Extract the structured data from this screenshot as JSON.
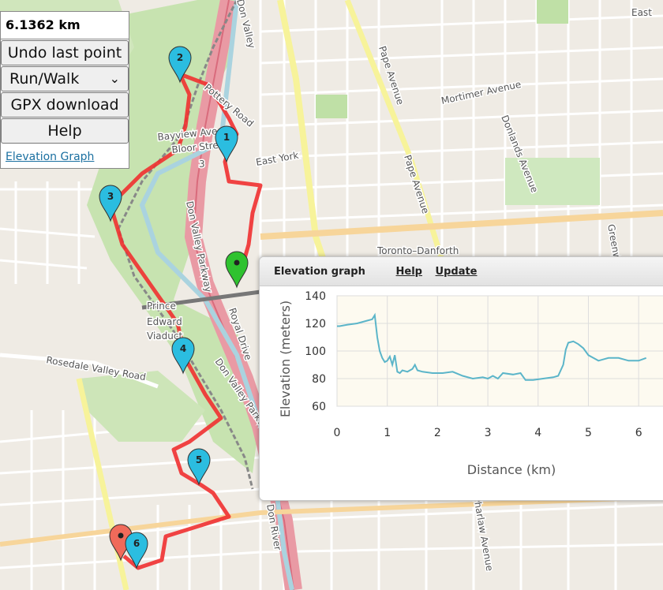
{
  "panel": {
    "distance": "6.1362 km",
    "undo_label": "Undo last point",
    "mode_label": "Run/Walk",
    "gpx_label": "GPX download",
    "help_label": "Help",
    "elevation_link": "Elevation Graph"
  },
  "map": {
    "labels": [
      {
        "text": "East"
      },
      {
        "text": "Pape Avenue"
      },
      {
        "text": "Pape Avenue"
      },
      {
        "text": "Mortimer Avenue"
      },
      {
        "text": "Donlands Avenue"
      },
      {
        "text": "East York"
      },
      {
        "text": "Toronto–Danforth"
      },
      {
        "text": "Bayview Ave"
      },
      {
        "text": "Bloor Street"
      },
      {
        "text": "3"
      },
      {
        "text": "Pottery Road"
      },
      {
        "text": "Don Valley Parkway"
      },
      {
        "text": "Don Valley Parkway"
      },
      {
        "text": "Royal Drive"
      },
      {
        "text": "Prince"
      },
      {
        "text": "Edward"
      },
      {
        "text": "Viaduct"
      },
      {
        "text": "Rosedale Valley Road"
      },
      {
        "text": "Don Valley"
      },
      {
        "text": "Don River"
      },
      {
        "text": "Greenwood"
      },
      {
        "text": "Pharlaw Avenue"
      }
    ],
    "markers": [
      {
        "label": "1",
        "color": "#2bbde0"
      },
      {
        "label": "2",
        "color": "#2bbde0"
      },
      {
        "label": "3",
        "color": "#2bbde0"
      },
      {
        "label": "4",
        "color": "#2bbde0"
      },
      {
        "label": "5",
        "color": "#2bbde0"
      },
      {
        "label": "6",
        "color": "#2bbde0"
      },
      {
        "label": "",
        "color": "#2fc22f"
      },
      {
        "label": "",
        "color": "#f06a5a"
      }
    ],
    "route_color": "#f03030"
  },
  "elevation": {
    "title": "Elevation graph",
    "help_label": "Help",
    "update_label": "Update"
  },
  "chart_data": {
    "type": "line",
    "xlabel": "Distance (km)",
    "ylabel": "Elevation (meters)",
    "xlim": [
      0,
      6.5
    ],
    "ylim": [
      60,
      140
    ],
    "xticks": [
      0,
      1,
      2,
      3,
      4,
      5,
      6
    ],
    "yticks": [
      60,
      80,
      100,
      120,
      140
    ],
    "grid": true,
    "line_color": "#5bb5c9",
    "series": [
      {
        "x": [
          0,
          0.05,
          0.2,
          0.4,
          0.6,
          0.7,
          0.75,
          0.8,
          0.85,
          0.9,
          0.95,
          1.0,
          1.05,
          1.1,
          1.15,
          1.2,
          1.25,
          1.3,
          1.4,
          1.5,
          1.55,
          1.6,
          1.7,
          1.9,
          2.1,
          2.3,
          2.5,
          2.7,
          2.9,
          3.0,
          3.1,
          3.2,
          3.3,
          3.5,
          3.65,
          3.75,
          3.9,
          4.1,
          4.3,
          4.4,
          4.5,
          4.55,
          4.6,
          4.7,
          4.8,
          4.9,
          5.0,
          5.1,
          5.2,
          5.4,
          5.6,
          5.8,
          6.0,
          6.15
        ],
        "y": [
          118,
          118,
          119,
          120,
          122,
          123,
          126,
          110,
          100,
          95,
          92,
          93,
          96,
          90,
          97,
          85,
          84,
          86,
          85,
          87,
          90,
          86,
          85,
          84,
          84,
          85,
          82,
          80,
          81,
          80,
          82,
          80,
          84,
          83,
          84,
          79,
          79,
          80,
          81,
          82,
          90,
          101,
          106,
          107,
          105,
          102,
          97,
          95,
          93,
          95,
          95,
          93,
          93,
          95
        ]
      }
    ]
  }
}
